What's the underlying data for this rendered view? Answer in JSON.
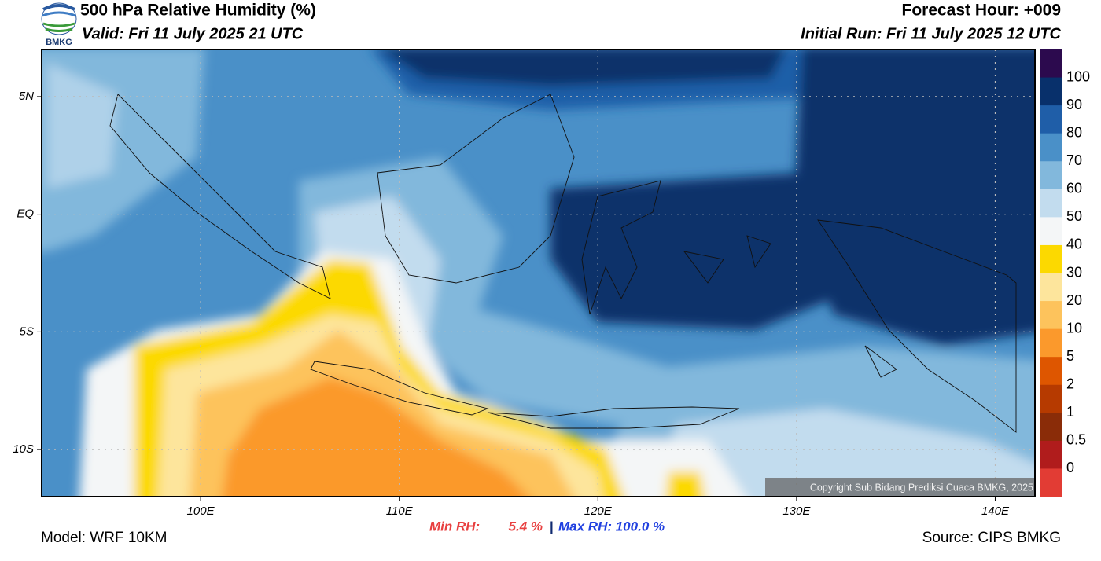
{
  "header": {
    "title": "500 hPa Relative Humidity (%)",
    "valid": "Valid: Fri 11 July 2025 21 UTC",
    "forecast_hour": "Forecast Hour: +009",
    "initial_run": "Initial Run: Fri 11 July 2025 12 UTC",
    "logo": "BMKG"
  },
  "map": {
    "xlim": [
      92,
      142
    ],
    "ylim": [
      -12,
      7
    ],
    "xticks": [
      {
        "value": 100,
        "label": "100E"
      },
      {
        "value": 110,
        "label": "110E"
      },
      {
        "value": 120,
        "label": "120E"
      },
      {
        "value": 130,
        "label": "130E"
      },
      {
        "value": 140,
        "label": "140E"
      }
    ],
    "yticks": [
      {
        "value": 5,
        "label": "5N"
      },
      {
        "value": 0,
        "label": "EQ"
      },
      {
        "value": -5,
        "label": "5S"
      },
      {
        "value": -10,
        "label": "10S"
      }
    ],
    "grid": true,
    "copyright": "Copyright Sub Bidang Prediksi Cuaca BMKG, 2025"
  },
  "colorbar": {
    "levels": [
      100,
      90,
      80,
      70,
      60,
      50,
      40,
      30,
      20,
      10,
      5,
      2,
      1,
      0.5,
      0
    ],
    "colors": [
      "#2c0a4e",
      "#08306b",
      "#1f5ea8",
      "#4a90c8",
      "#82b8dc",
      "#c2dcee",
      "#f4f6f7",
      "#fcd900",
      "#fde59c",
      "#fdc35c",
      "#fb992c",
      "#de5600",
      "#b63a00",
      "#8a2c08",
      "#b01c1c",
      "#e23c34"
    ]
  },
  "stats": {
    "min_label": "Min RH:",
    "min_value": "5.4 %",
    "separator": "|",
    "max": "Max RH: 100.0 %"
  },
  "footer": {
    "model": "Model: WRF 10KM",
    "source": "Source: CIPS BMKG"
  }
}
